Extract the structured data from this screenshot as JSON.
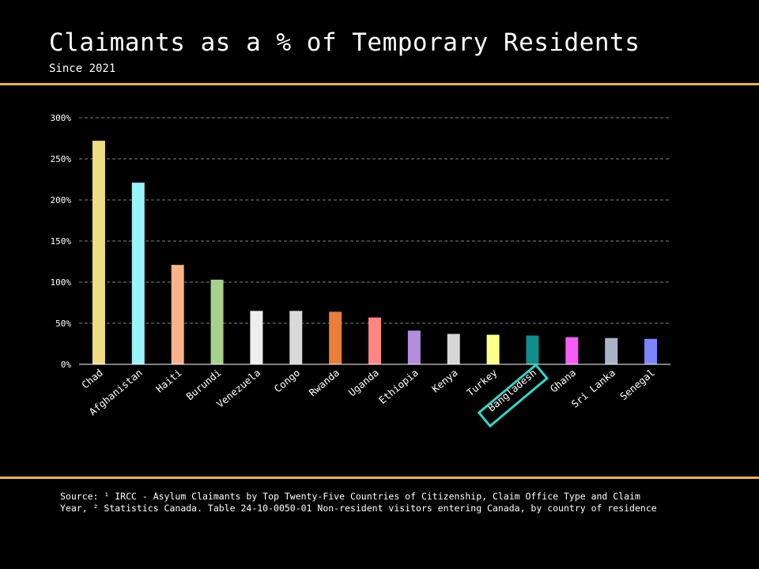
{
  "header": {
    "title": "Claimants as a % of Temporary Residents",
    "subtitle": "Since 2021"
  },
  "footer": {
    "source": "Source: ¹ IRCC - Asylum Claimants by Top Twenty-Five Countries of Citizenship, Claim Office Type and Claim Year, ² Statistics Canada. Table 24-10-0050-01  Non-resident visitors entering Canada, by country of residence"
  },
  "colors": {
    "background": "#000000",
    "rule": "#f2b33d",
    "highlight": "#33d6c8",
    "grid": "#aaaaaa",
    "text": "#ffffff"
  },
  "chart_data": {
    "type": "bar",
    "title": "Claimants as a % of Temporary Residents",
    "subtitle": "Since 2021",
    "xlabel": "",
    "ylabel": "",
    "ylim": [
      0,
      300
    ],
    "yticks": [
      0,
      50,
      100,
      150,
      200,
      250,
      300
    ],
    "ytick_labels": [
      "0%",
      "50%",
      "100%",
      "150%",
      "200%",
      "250%",
      "300%"
    ],
    "grid": true,
    "categories": [
      "Chad",
      "Afghanistan",
      "Haiti",
      "Burundi",
      "Venezuela",
      "Congo",
      "Rwanda",
      "Uganda",
      "Ethiopia",
      "Kenya",
      "Turkey",
      "Bangladesh",
      "Ghana",
      "Sri Lanka",
      "Senegal"
    ],
    "values": [
      272,
      221,
      121,
      103,
      65,
      65,
      64,
      57,
      41,
      37,
      36,
      35,
      33,
      32,
      31
    ],
    "bar_colors": [
      "#f0dc82",
      "#98f5f9",
      "#f7b48a",
      "#a8d08d",
      "#eeeeee",
      "#d9d9d9",
      "#e87e3c",
      "#ff8585",
      "#b48ede",
      "#d6d6d6",
      "#ffff8a",
      "#0e8f8a",
      "#f55cf5",
      "#a9b4c6",
      "#7b85fc"
    ],
    "highlighted_category": "Bangladesh"
  }
}
